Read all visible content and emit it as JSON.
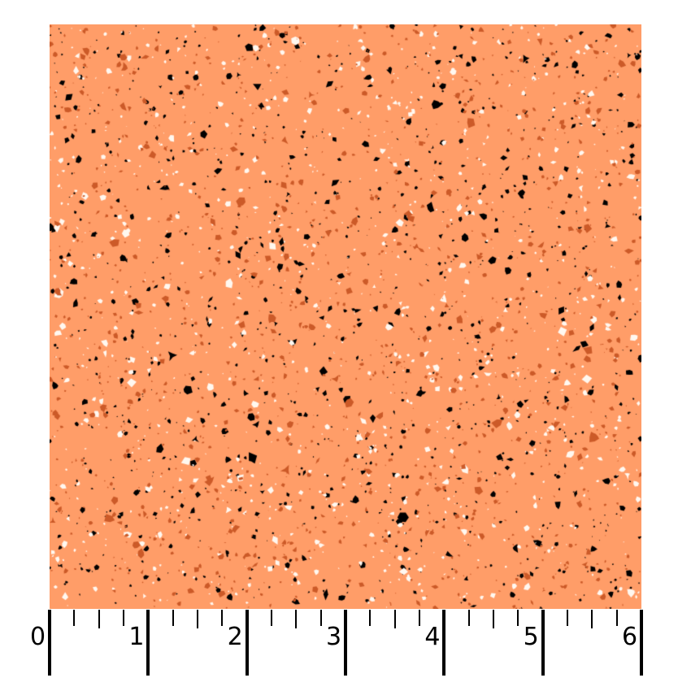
{
  "swatch": {
    "background_color": "#FF9D68",
    "speckle_colors": [
      "#000000",
      "#FFF8F0",
      "#CC5A28"
    ]
  },
  "ruler": {
    "unit_labels": [
      "0",
      "1",
      "2",
      "3",
      "4",
      "5",
      "6"
    ]
  }
}
